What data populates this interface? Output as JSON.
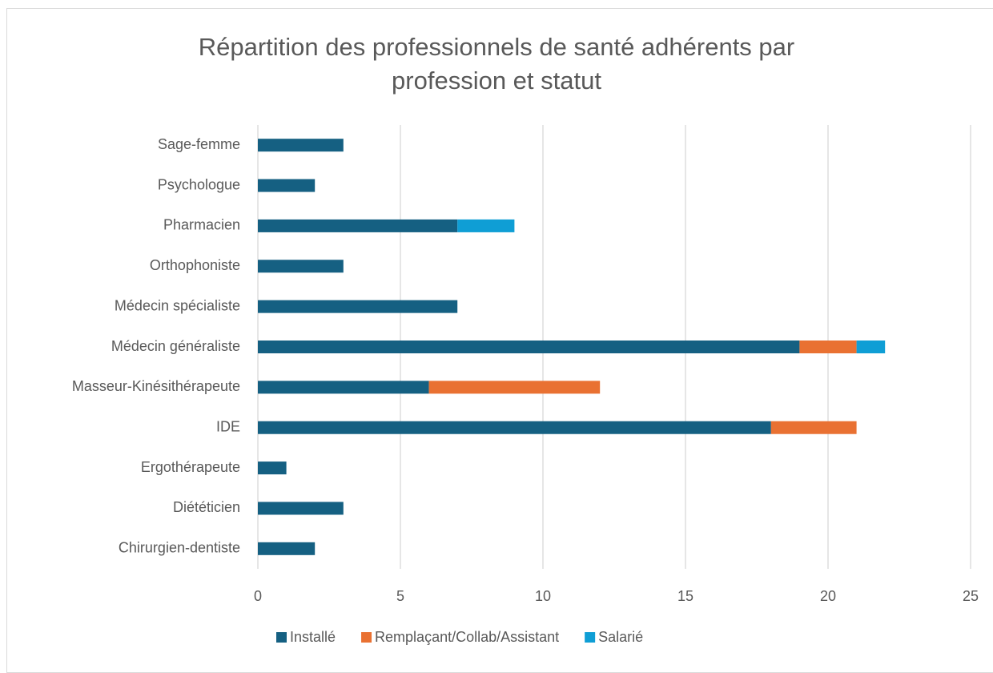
{
  "chart_data": {
    "type": "bar",
    "orientation": "horizontal",
    "stacked": true,
    "title": "Répartition des professionnels de santé adhérents par profession et statut",
    "categories": [
      "Sage-femme",
      "Psychologue",
      "Pharmacien",
      "Orthophoniste",
      "Médecin spécialiste",
      "Médecin généraliste",
      "Masseur-Kinésithérapeute",
      "IDE",
      "Ergothérapeute",
      "Diététicien",
      "Chirurgien-dentiste"
    ],
    "series": [
      {
        "name": "Installé",
        "color": "#156082",
        "values": [
          3,
          2,
          7,
          3,
          7,
          19,
          6,
          18,
          1,
          3,
          2
        ]
      },
      {
        "name": "Remplaçant/Collab/Assistant",
        "color": "#e97132",
        "values": [
          0,
          0,
          0,
          0,
          0,
          2,
          6,
          3,
          0,
          0,
          0
        ]
      },
      {
        "name": "Salarié",
        "color": "#0f9ed5",
        "values": [
          0,
          0,
          2,
          0,
          0,
          1,
          0,
          0,
          0,
          0,
          0
        ]
      }
    ],
    "xlim": [
      0,
      25
    ],
    "xticks": [
      0,
      5,
      10,
      15,
      20,
      25
    ],
    "grid": true,
    "legend": "bottom"
  }
}
